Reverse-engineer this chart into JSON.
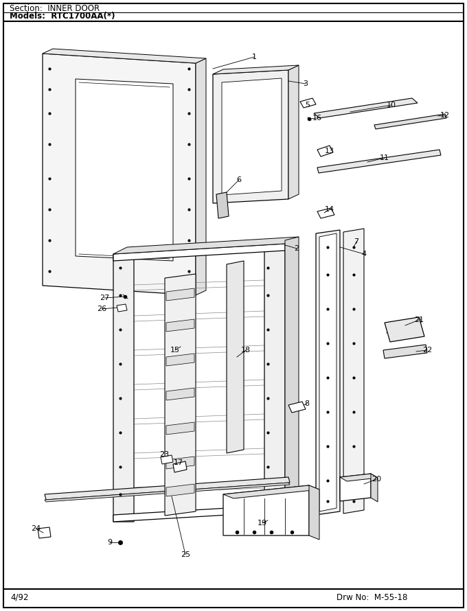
{
  "section_text": "Section:  INNER DOOR",
  "model_text": "Models:  RTC1700AA(*)",
  "footer_left": "4/92",
  "footer_right": "Drw No:  M-55-18",
  "bg_color": "#ffffff",
  "fig_width": 6.8,
  "fig_height": 8.9
}
